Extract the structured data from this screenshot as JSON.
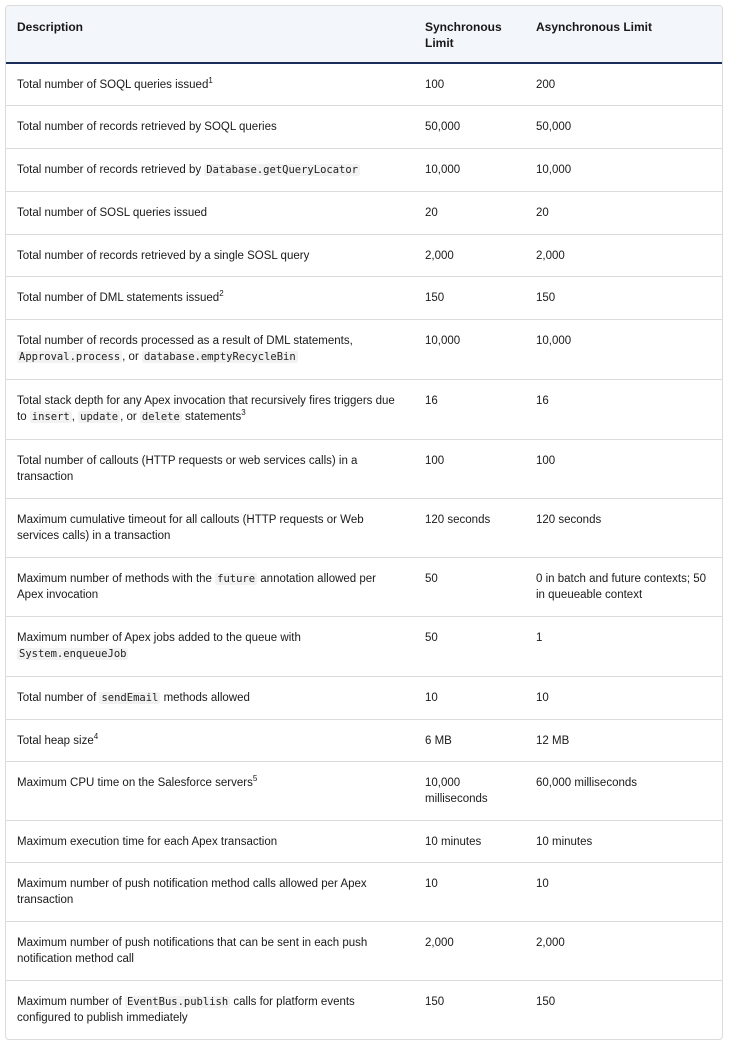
{
  "table": {
    "headers": [
      "Description",
      "Synchronous Limit",
      "Asynchronous Limit"
    ],
    "rows": [
      {
        "desc": [
          {
            "t": "Total number of SOQL queries issued"
          },
          {
            "sup": "1"
          }
        ],
        "sync": "100",
        "async": "200"
      },
      {
        "desc": [
          {
            "t": "Total number of records retrieved by SOQL queries"
          }
        ],
        "sync": "50,000",
        "async": "50,000"
      },
      {
        "desc": [
          {
            "t": "Total number of records retrieved by "
          },
          {
            "code": "Database.getQueryLocator"
          }
        ],
        "sync": "10,000",
        "async": "10,000"
      },
      {
        "desc": [
          {
            "t": "Total number of SOSL queries issued"
          }
        ],
        "sync": "20",
        "async": "20"
      },
      {
        "desc": [
          {
            "t": "Total number of records retrieved by a single SOSL query"
          }
        ],
        "sync": "2,000",
        "async": "2,000"
      },
      {
        "desc": [
          {
            "t": "Total number of DML statements issued"
          },
          {
            "sup": "2"
          }
        ],
        "sync": "150",
        "async": "150"
      },
      {
        "desc": [
          {
            "t": "Total number of records processed as a result of DML statements,"
          },
          {
            "br": true
          },
          {
            "code": "Approval.process"
          },
          {
            "t": ", or "
          },
          {
            "code": "database.emptyRecycleBin"
          }
        ],
        "sync": "10,000",
        "async": "10,000"
      },
      {
        "desc": [
          {
            "t": "Total stack depth for any Apex invocation that recursively fires triggers due to "
          },
          {
            "code": "insert"
          },
          {
            "t": ", "
          },
          {
            "code": "update"
          },
          {
            "t": ", or "
          },
          {
            "code": "delete"
          },
          {
            "t": " statements"
          },
          {
            "sup": "3"
          }
        ],
        "sync": "16",
        "async": "16"
      },
      {
        "desc": [
          {
            "t": "Total number of callouts (HTTP requests or web services calls) in a transaction"
          }
        ],
        "sync": "100",
        "async": "100"
      },
      {
        "desc": [
          {
            "t": "Maximum cumulative timeout for all callouts (HTTP requests or Web services calls) in a transaction"
          }
        ],
        "sync": "120 seconds",
        "async": "120 seconds"
      },
      {
        "desc": [
          {
            "t": "Maximum number of methods with the "
          },
          {
            "code": "future"
          },
          {
            "t": " annotation allowed per Apex invocation"
          }
        ],
        "sync": "50",
        "async": "0 in batch and future contexts; 50 in queueable context"
      },
      {
        "desc": [
          {
            "t": "Maximum number of Apex jobs added to the queue with"
          },
          {
            "br": true
          },
          {
            "code": "System.enqueueJob"
          }
        ],
        "sync": "50",
        "async": "1"
      },
      {
        "desc": [
          {
            "t": "Total number of "
          },
          {
            "code": "sendEmail"
          },
          {
            "t": " methods allowed"
          }
        ],
        "sync": "10",
        "async": "10"
      },
      {
        "desc": [
          {
            "t": "Total heap size"
          },
          {
            "sup": "4"
          }
        ],
        "sync": "6 MB",
        "async": "12 MB"
      },
      {
        "desc": [
          {
            "t": "Maximum CPU time on the Salesforce servers"
          },
          {
            "sup": "5"
          }
        ],
        "sync": "10,000 milliseconds",
        "async": "60,000 milliseconds"
      },
      {
        "desc": [
          {
            "t": "Maximum execution time for each Apex transaction"
          }
        ],
        "sync": "10 minutes",
        "async": "10 minutes"
      },
      {
        "desc": [
          {
            "t": "Maximum number of push notification method calls allowed per Apex transaction"
          }
        ],
        "sync": "10",
        "async": "10"
      },
      {
        "desc": [
          {
            "t": "Maximum number of push notifications that can be sent in each push notification method call"
          }
        ],
        "sync": "2,000",
        "async": "2,000"
      },
      {
        "desc": [
          {
            "t": "Maximum number of "
          },
          {
            "code": "EventBus.publish"
          },
          {
            "t": " calls for platform events configured to publish immediately"
          }
        ],
        "sync": "150",
        "async": "150"
      }
    ]
  }
}
